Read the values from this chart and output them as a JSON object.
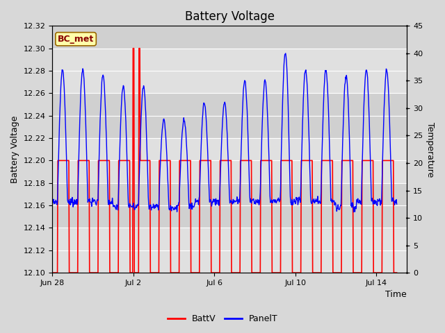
{
  "title": "Battery Voltage",
  "xlabel": "Time",
  "ylabel_left": "Battery Voltage",
  "ylabel_right": "Temperature",
  "ylim_left": [
    12.1,
    12.32
  ],
  "ylim_right": [
    0,
    45
  ],
  "yticks_left": [
    12.1,
    12.12,
    12.14,
    12.16,
    12.18,
    12.2,
    12.22,
    12.24,
    12.26,
    12.28,
    12.3,
    12.32
  ],
  "yticks_right": [
    0,
    5,
    10,
    15,
    20,
    25,
    30,
    35,
    40,
    45
  ],
  "xtick_positions": [
    0,
    4,
    8,
    12,
    16
  ],
  "xtick_labels": [
    "Jun 28",
    "Jul 2",
    "Jul 6",
    "Jul 10",
    "Jul 14"
  ],
  "xlim": [
    0,
    17.5
  ],
  "station_label": "BC_met",
  "station_label_bg": "#ffffaa",
  "station_label_border": "#996600",
  "fig_bg_color": "#d8d8d8",
  "plot_bg_light": "#e8e8e8",
  "plot_bg_dark": "#d0d0d0",
  "grid_color": "#ffffff",
  "batt_color": "#ff0000",
  "panel_color": "#0000ff",
  "legend_batt": "BattV",
  "legend_panel": "PanelT",
  "title_fontsize": 12,
  "axis_fontsize": 9,
  "tick_fontsize": 8,
  "legend_fontsize": 9
}
